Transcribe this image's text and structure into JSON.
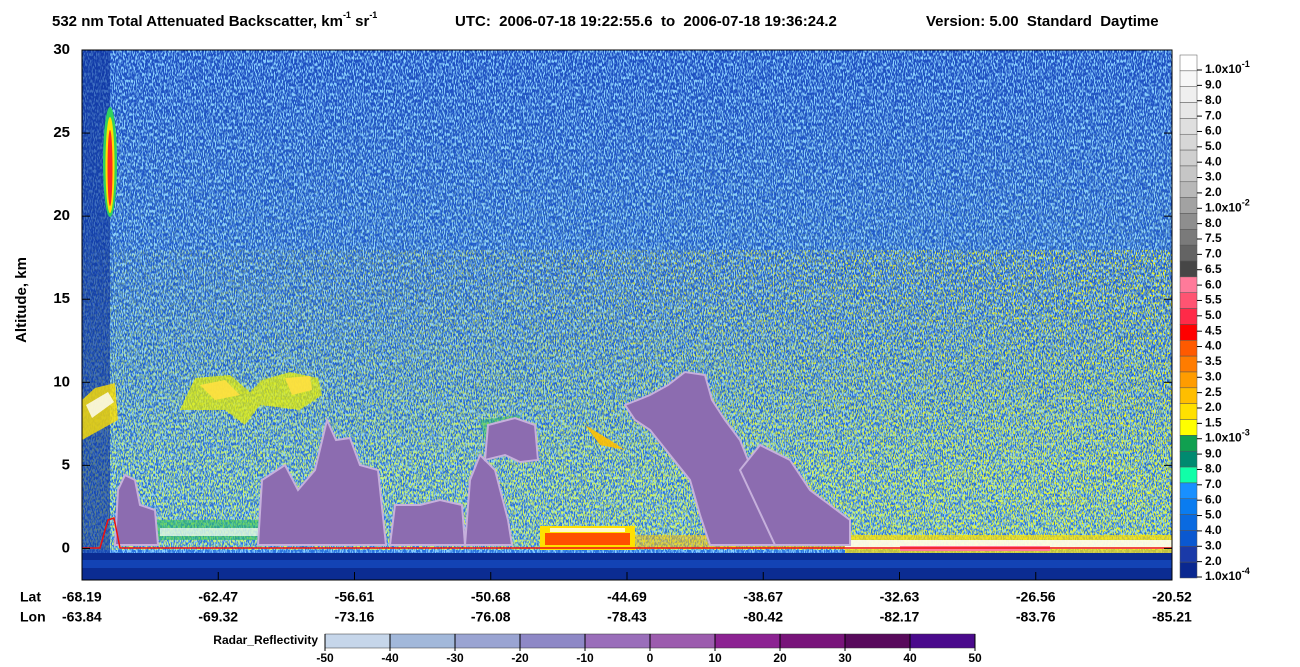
{
  "title": {
    "text": "532 nm Total Attenuated Backscatter, km",
    "exp1": "-1",
    "unit_mid": " sr",
    "exp2": "-1",
    "utc": "UTC:  2006-07-18 19:22:55.6  to  2006-07-18 19:36:24.2",
    "version": "Version: 5.00  Standard  Daytime"
  },
  "y_axis": {
    "label": "Altitude, km",
    "lim": [
      -1.9,
      30
    ],
    "ticks": [
      0,
      5,
      10,
      15,
      20,
      25,
      30
    ]
  },
  "x_axis": {
    "lat_label": "Lat",
    "lon_label": "Lon",
    "lat": [
      -68.19,
      -62.47,
      -56.61,
      -50.68,
      -44.69,
      -38.67,
      -32.63,
      -26.56,
      -20.52
    ],
    "lon": [
      -63.84,
      -69.32,
      -73.16,
      -76.08,
      -78.43,
      -80.42,
      -82.17,
      -83.76,
      -85.21
    ]
  },
  "colorbar": {
    "labels": [
      {
        "base": "1.0x10",
        "exp": "-1"
      },
      "9.0",
      "8.0",
      "7.0",
      "6.0",
      "5.0",
      "4.0",
      "3.0",
      "2.0",
      {
        "base": "1.0x10",
        "exp": "-2"
      },
      "8.0",
      "7.5",
      "7.0",
      "6.5",
      "6.0",
      "5.5",
      "5.0",
      "4.5",
      "4.0",
      "3.5",
      "3.0",
      "2.5",
      "2.0",
      "1.5",
      {
        "base": "1.0x10",
        "exp": "-3"
      },
      "9.0",
      "8.0",
      "7.0",
      "6.0",
      "5.0",
      "4.0",
      "3.0",
      "2.0",
      {
        "base": "1.0x10",
        "exp": "-4"
      }
    ],
    "colors": [
      "#ffffff",
      "#f7f7f7",
      "#efefef",
      "#e7e7e7",
      "#dfdfdf",
      "#d7d7d7",
      "#cfcfcf",
      "#c6c6c6",
      "#b8b8b8",
      "#a2a2a2",
      "#8e8e8e",
      "#7a7a7a",
      "#646464",
      "#464646",
      "#ff7a9a",
      "#ff5472",
      "#ff2a48",
      "#ff0000",
      "#ff5a00",
      "#ff7c00",
      "#ff9c00",
      "#ffbe00",
      "#ffe000",
      "#ffff00",
      "#10a050",
      "#008a70",
      "#10ffa8",
      "#1890ff",
      "#0a7cf0",
      "#0a6ae0",
      "#0a58d0",
      "#1a3aa8",
      "#0a2890"
    ]
  },
  "radar_colorbar": {
    "label": "Radar_Reflectivity",
    "ticks": [
      -50,
      -40,
      -30,
      -20,
      -10,
      0,
      10,
      20,
      30,
      40,
      50
    ],
    "colors": [
      "#c6d6ea",
      "#a2b8da",
      "#9aa4d2",
      "#8e88c6",
      "#9a6eba",
      "#9c5cae",
      "#8c2292",
      "#78147a",
      "#580a5c",
      "#4a0a8c"
    ]
  }
}
